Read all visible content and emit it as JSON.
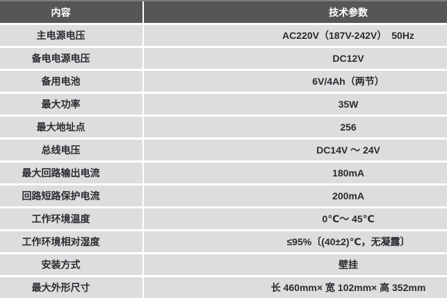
{
  "table": {
    "header": {
      "content_label": "内容",
      "params_label": "技术参数"
    },
    "rows": [
      {
        "label": "主电源电压",
        "value": "AC220V（187V-242V）　50Hz"
      },
      {
        "label": "备电电源电压",
        "value": "DC12V"
      },
      {
        "label": "备用电池",
        "value": "6V/4Ah（两节）"
      },
      {
        "label": "最大功率",
        "value": "35W"
      },
      {
        "label": "最大地址点",
        "value": "256"
      },
      {
        "label": "总线电压",
        "value": "DC14V ～ 24V"
      },
      {
        "label": "最大回路输出电流",
        "value": "180mA"
      },
      {
        "label": "回路短路保护电流",
        "value": "200mA"
      },
      {
        "label": "工作环境温度",
        "value": "0℃～ 45℃"
      },
      {
        "label": "工作环境相对湿度",
        "value": "≤95%〔(40±2)℃，无凝露〕"
      },
      {
        "label": "安装方式",
        "value": "壁挂"
      },
      {
        "label": "最大外形尺寸",
        "value": "长 460mm× 宽 102mm× 高 352mm"
      }
    ],
    "colors": {
      "header_background": "#565659",
      "header_top_strip": "#7c7d7f",
      "header_text": "#ffffff",
      "row_background": "#dcddde",
      "separator": "#ffffff",
      "body_text": "#2b2b2f"
    }
  }
}
